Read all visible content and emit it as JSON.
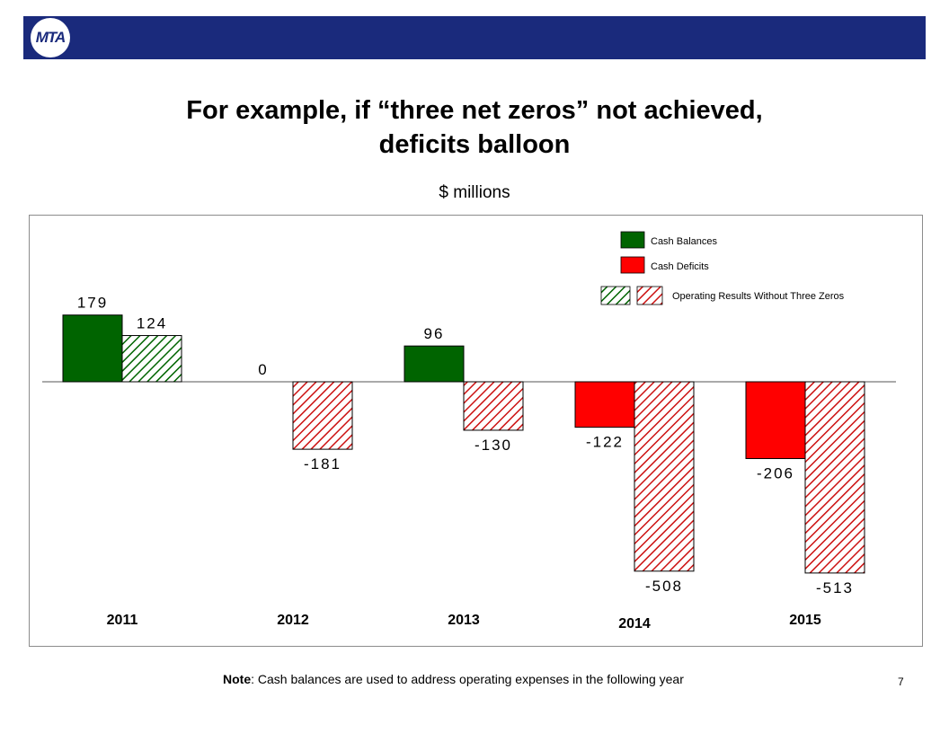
{
  "header": {
    "logo_text": "MTA",
    "bar_color": "#1a2a7c"
  },
  "title_line1": "For example, if  “three net zeros” not achieved,",
  "title_line2": "deficits balloon",
  "subtitle": "$ millions",
  "note": {
    "label": "Note",
    "text": ":  Cash balances are used to address operating expenses in the following year"
  },
  "page_number": "7",
  "chart_data": {
    "type": "bar",
    "categories": [
      "2011",
      "2012",
      "2013",
      "2014",
      "2015"
    ],
    "series": [
      {
        "name": "Cash Balances / Cash Deficits",
        "values": [
          179,
          0,
          96,
          -122,
          -206
        ],
        "pattern": "solid"
      },
      {
        "name": "Operating Results Without Three  Zeros",
        "values": [
          124,
          -181,
          -130,
          -508,
          -513
        ],
        "pattern": "hatched"
      }
    ],
    "data_labels": [
      [
        "179",
        "124"
      ],
      [
        "0",
        "-181"
      ],
      [
        "96",
        "-130"
      ],
      [
        "-122",
        "-508"
      ],
      [
        "-206",
        "-513"
      ]
    ],
    "legend": {
      "position": "top-right",
      "items": [
        {
          "label": "Cash Balances",
          "color": "#006400",
          "style": "solid"
        },
        {
          "label": "Cash Deficits",
          "color": "#ff0000",
          "style": "solid"
        },
        {
          "label": "Operating Results Without Three  Zeros",
          "style": "hatched"
        }
      ]
    },
    "colors": {
      "positive": "#006400",
      "negative": "#ff0000",
      "hatch_background": "#ffffff"
    },
    "ylim": [
      -540,
      200
    ],
    "grid": false
  }
}
